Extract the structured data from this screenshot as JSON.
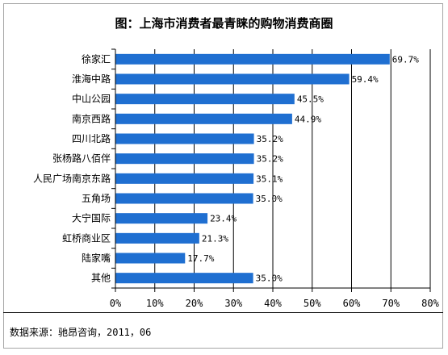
{
  "title": "图：上海市消费者最青睐的购物消费商圈",
  "source": "数据来源：驰昂咨询，2011，06",
  "bar_color": "#1f6fd1",
  "chart_data": {
    "type": "bar",
    "orientation": "horizontal",
    "title": "图：上海市消费者最青睐的购物消费商圈",
    "categories": [
      "徐家汇",
      "淮海中路",
      "中山公园",
      "南京西路",
      "四川北路",
      "张杨路八佰伴",
      "人民广场南京东路",
      "五角场",
      "大宁国际",
      "虹桥商业区",
      "陆家嘴",
      "其他"
    ],
    "values": [
      69.7,
      59.4,
      45.5,
      44.9,
      35.2,
      35.2,
      35.1,
      35.0,
      23.4,
      21.3,
      17.7,
      35.0
    ],
    "value_labels": [
      "69.7%",
      "59.4%",
      "45.5%",
      "44.9%",
      "35.2%",
      "35.2%",
      "35.1%",
      "35.0%",
      "23.4%",
      "21.3%",
      "17.7%",
      "35.0%"
    ],
    "xlim": [
      0,
      80
    ],
    "xticks": [
      "0%",
      "10%",
      "20%",
      "30%",
      "40%",
      "50%",
      "60%",
      "70%",
      "80%"
    ],
    "grid": true
  }
}
